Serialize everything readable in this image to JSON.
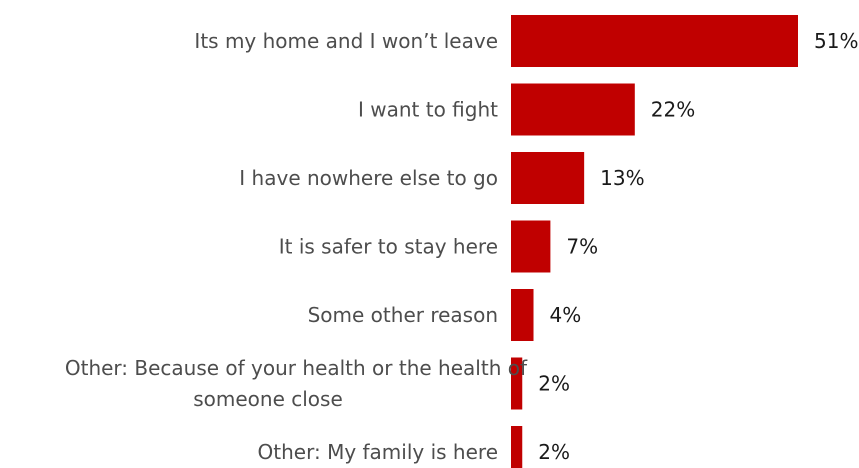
{
  "chart_data": {
    "type": "bar",
    "orientation": "horizontal",
    "categories": [
      "Its my home and I won’t leave",
      "I want to fight",
      "I have nowhere else to go",
      "It is safer to stay here",
      "Some other reason",
      "Other: Because of your health or the health of someone close",
      "Other: My family is here"
    ],
    "category_lines": [
      [
        "Its my home and I won’t leave"
      ],
      [
        "I want to fight"
      ],
      [
        "I have nowhere else to go"
      ],
      [
        "It is safer to stay here"
      ],
      [
        "Some other reason"
      ],
      [
        "Other: Because of your health or the health of",
        "someone close"
      ],
      [
        "Other: My family is here"
      ]
    ],
    "values": [
      51,
      22,
      13,
      7,
      4,
      2,
      2
    ],
    "value_labels": [
      "51%",
      "22%",
      "13%",
      "7%",
      "4%",
      "2%",
      "2%"
    ],
    "unit": "%",
    "bar_color": "#c00000",
    "xlim": [
      0,
      51
    ],
    "grid": false,
    "legend": "none",
    "title": "",
    "xlabel": "",
    "ylabel": ""
  }
}
